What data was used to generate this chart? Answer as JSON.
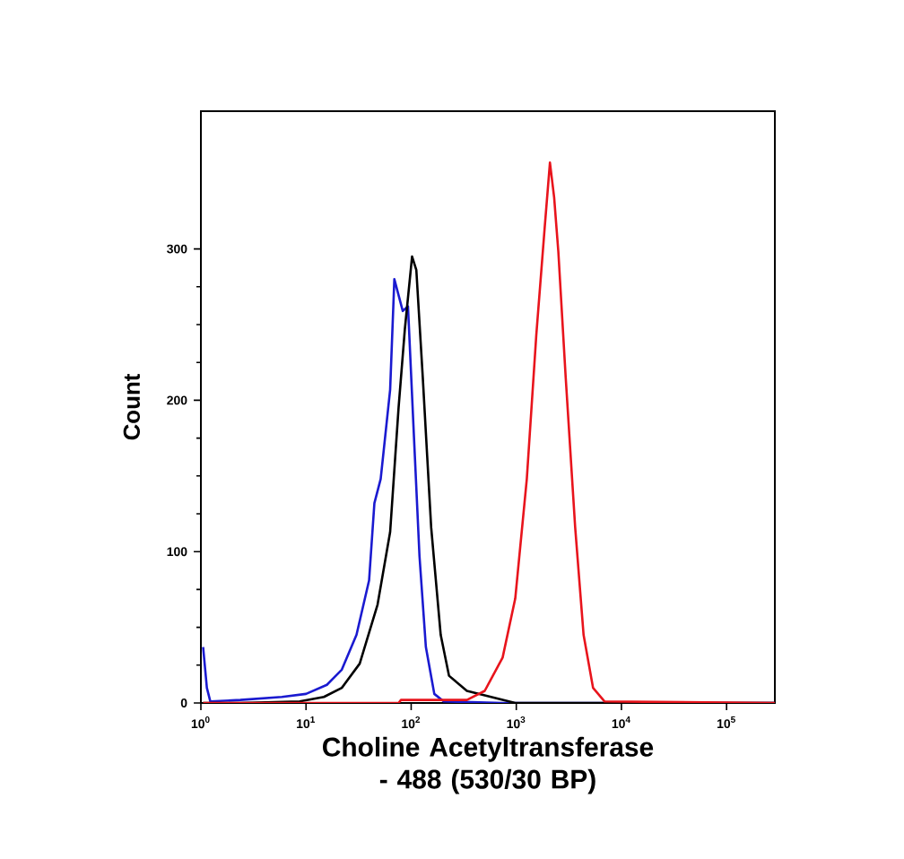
{
  "chart_data": {
    "type": "line",
    "xlabel": "Choline Acetyltransferase - 488 (530/30 BP)",
    "ylabel": "Count",
    "log": "x",
    "xlim": [
      1,
      288000
    ],
    "ylim": [
      0,
      391
    ],
    "xticks": [
      {
        "value": 1,
        "label": "10$^{0}$"
      },
      {
        "value": 10,
        "label": "10$^{1}$"
      },
      {
        "value": 100,
        "label": "10$^{2}$"
      },
      {
        "value": 1000,
        "label": "10$^{3}$"
      },
      {
        "value": 10000,
        "label": "10$^{4}$"
      },
      {
        "value": 100000,
        "label": "10$^{5}$"
      }
    ],
    "yticks": [
      0,
      100,
      200,
      300
    ],
    "series": [
      {
        "color": "#1a1ad0",
        "x": [
          1.05,
          1.14,
          1.23,
          2.37,
          5.9,
          10,
          15.8,
          21.9,
          30.2,
          39.8,
          44.7,
          51.3,
          63.1,
          69.2,
          83.2,
          93.3,
          105,
          120,
          138,
          166,
          204,
          741,
          288000
        ],
        "values": [
          37,
          10,
          1,
          2,
          4,
          6,
          12,
          22,
          45,
          81,
          132,
          148,
          207,
          280,
          259,
          262,
          184,
          97,
          37,
          6,
          1,
          0,
          0
        ]
      },
      {
        "color": "#000000",
        "x": [
          1.05,
          2.37,
          8.7,
          14.8,
          21.9,
          32.4,
          47.9,
          63.1,
          75.9,
          87.1,
          102,
          112,
          129,
          155,
          191,
          229,
          339,
          575,
          977,
          288000
        ],
        "values": [
          0,
          0,
          1,
          4,
          10,
          26,
          65,
          113,
          195,
          247,
          295,
          286,
          215,
          116,
          45,
          18,
          8,
          4,
          0,
          0
        ]
      },
      {
        "color": "#e8141c",
        "x": [
          1.05,
          76,
          80,
          263,
          339,
          501,
          741,
          977,
          1259,
          1549,
          1862,
          2089,
          2291,
          2512,
          2951,
          3631,
          4365,
          5370,
          6918,
          288000
        ],
        "values": [
          0,
          0,
          2,
          2,
          2,
          8,
          30,
          69,
          148,
          243,
          314,
          357,
          334,
          298,
          215,
          116,
          45,
          10,
          1,
          0
        ]
      }
    ]
  }
}
